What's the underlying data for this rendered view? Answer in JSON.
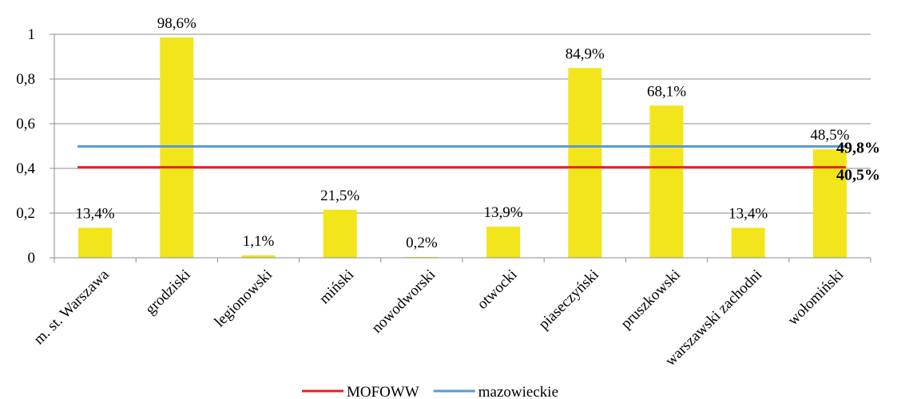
{
  "chart_data": {
    "type": "bar",
    "categories": [
      "m. st. Warszawa",
      "grodziski",
      "legionowski",
      "miński",
      "nowodworski",
      "otwocki",
      "piaseczyński",
      "pruszkowski",
      "warszawski zachodni",
      "wołomiński"
    ],
    "values": [
      0.134,
      0.986,
      0.011,
      0.215,
      0.002,
      0.139,
      0.849,
      0.681,
      0.134,
      0.485
    ],
    "data_labels": [
      "13,4%",
      "98,6%",
      "1,1%",
      "21,5%",
      "0,2%",
      "13,9%",
      "84,9%",
      "68,1%",
      "13,4%",
      "48,5%"
    ],
    "ylim": [
      0,
      1
    ],
    "yticks": [
      0,
      0.2,
      0.4,
      0.6,
      0.8,
      1
    ],
    "ytick_labels": [
      "0",
      "0,2",
      "0,4",
      "0,6",
      "0,8",
      "1"
    ],
    "grid": true,
    "bar_color": "#f2e51b",
    "reference_lines": [
      {
        "name": "MOFOWW",
        "value": 0.405,
        "label": "40,5%",
        "color": "#e8202a"
      },
      {
        "name": "mazowieckie",
        "value": 0.498,
        "label": "49,8%",
        "color": "#5b9bd5"
      }
    ],
    "legend_position": "bottom-center"
  }
}
